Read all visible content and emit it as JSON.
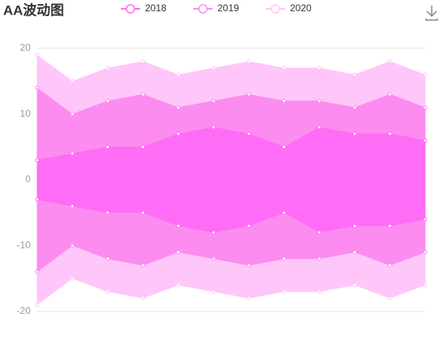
{
  "chart_data": {
    "type": "wave",
    "title": "AA波动图",
    "series": [
      {
        "name": "2018",
        "color": "#ff6cf5",
        "values": [
          3,
          4,
          5,
          5,
          7,
          8,
          7,
          5,
          8,
          7,
          7,
          6
        ]
      },
      {
        "name": "2019",
        "color": "#fc8cef",
        "values": [
          11,
          6,
          7,
          8,
          4,
          4,
          6,
          7,
          4,
          4,
          6,
          5
        ]
      },
      {
        "name": "2020",
        "color": "#ffc6fa",
        "values": [
          5,
          5,
          5,
          5,
          5,
          5,
          5,
          5,
          5,
          5,
          5,
          5
        ]
      }
    ],
    "ylim": [
      -20,
      20
    ],
    "yticks": [
      -20,
      -10,
      0,
      10,
      20
    ],
    "grid": true
  }
}
